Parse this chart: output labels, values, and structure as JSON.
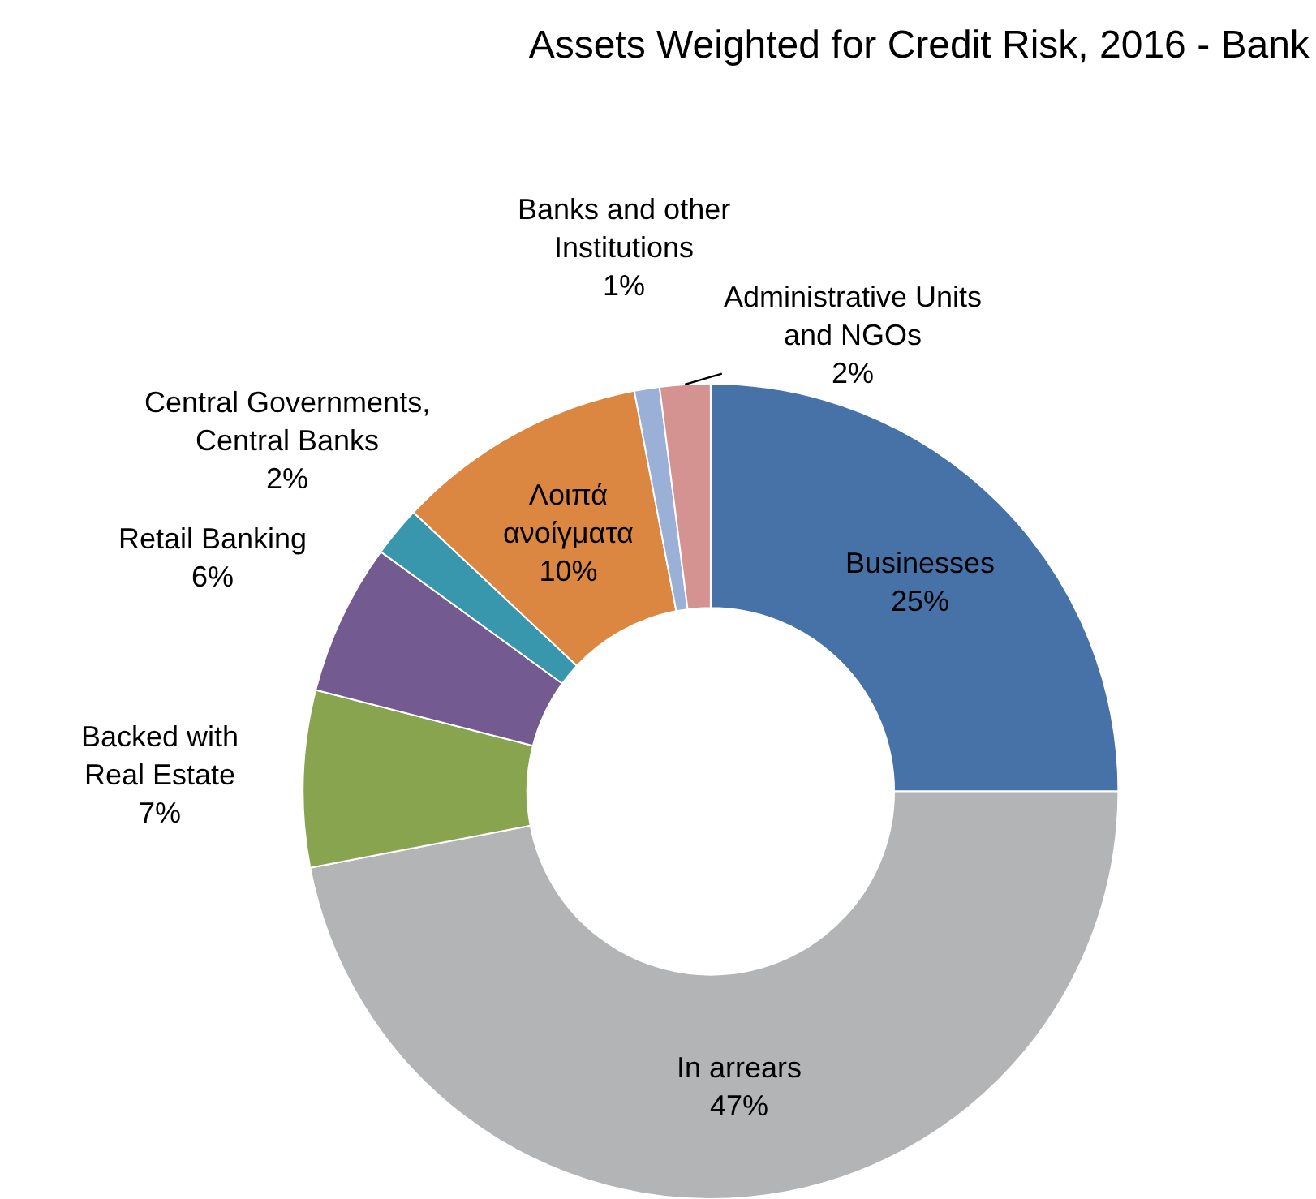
{
  "chart_data": {
    "type": "donut",
    "title": "Assets Weighted for Credit Risk, 2016 - Bank",
    "categories": [
      "Businesses",
      "In arrears",
      "Backed with\nReal Estate",
      "Retail Banking",
      "Central Governments,\nCentral Banks",
      "Λοιπά\nανοίγματα",
      "Banks and other\nInstitutions",
      "Administrative Units\nand NGOs"
    ],
    "values": [
      25,
      47,
      7,
      6,
      2,
      10,
      1,
      2
    ],
    "colors": [
      "#4672a8",
      "#b2b4b6",
      "#88a44e",
      "#735a91",
      "#3896ad",
      "#dc8741",
      "#9bb0d6",
      "#d49291"
    ],
    "value_labels": [
      "25%",
      "47%",
      "7%",
      "6%",
      "2%",
      "10%",
      "1%",
      "2%"
    ],
    "legend": false
  }
}
